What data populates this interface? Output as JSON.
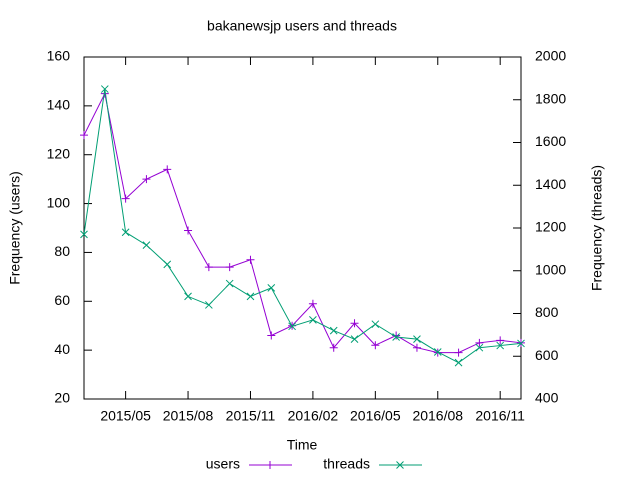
{
  "chart_data": {
    "type": "line",
    "title": "bakanewsjp users and threads",
    "xlabel": "Time",
    "ylabel": "Frequency (users)",
    "y2label": "Frequency (threads)",
    "categories": [
      null,
      null,
      "2015/05",
      null,
      null,
      "2015/08",
      null,
      null,
      "2015/11",
      null,
      null,
      "2016/02",
      null,
      null,
      "2016/05",
      null,
      null,
      "2016/08",
      null,
      null,
      "2016/11",
      null
    ],
    "series": [
      {
        "name": "users",
        "color": "#9400d3",
        "marker": "plus",
        "values": [
          128,
          145,
          102,
          110,
          114,
          89,
          74,
          74,
          77,
          46,
          50,
          59,
          41,
          51,
          42,
          46,
          41,
          39,
          39,
          43,
          44,
          43
        ]
      },
      {
        "name": "threads",
        "color": "#009e73",
        "marker": "cross",
        "axis": "y2",
        "values": [
          1170,
          1850,
          1180,
          1120,
          1030,
          880,
          840,
          940,
          880,
          920,
          740,
          770,
          720,
          680,
          750,
          690,
          680,
          620,
          570,
          640,
          650,
          660
        ]
      }
    ],
    "ylim": [
      20,
      160
    ],
    "yticks": [
      20,
      40,
      60,
      80,
      100,
      120,
      140,
      160
    ],
    "y2lim": [
      400,
      2000
    ],
    "y2ticks": [
      400,
      600,
      800,
      1000,
      1200,
      1400,
      1600,
      1800,
      2000
    ],
    "legend": "bottom",
    "grid": false
  }
}
